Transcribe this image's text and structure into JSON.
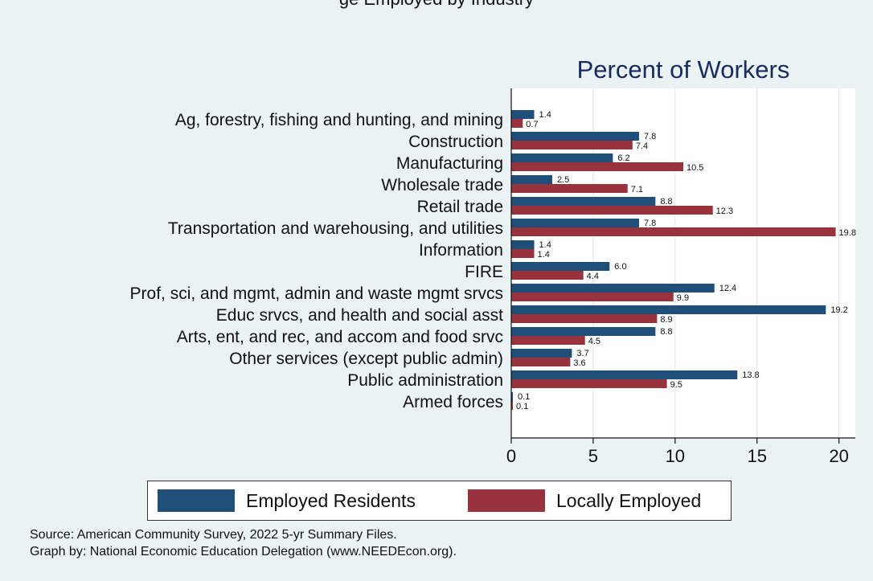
{
  "page": {
    "partial_title": "ge Employed by Industry",
    "source_line": "Source: American Community Survey, 2022 5-yr Summary Files.",
    "graph_by_line": "Graph by: National Economic Education Delegation (www.NEEDEcon.org)."
  },
  "chart_data": {
    "type": "bar",
    "orientation": "horizontal",
    "title": "Percent of Workers",
    "categories": [
      "Ag, forestry, fishing and hunting, and mining",
      "Construction",
      "Manufacturing",
      "Wholesale trade",
      "Retail trade",
      "Transportation and warehousing, and utilities",
      "Information",
      "FIRE",
      "Prof, sci, and mgmt, admin and waste mgmt srvcs",
      "Educ srvcs, and health and social asst",
      "Arts, ent, and rec, and accom and food srvc",
      "Other services (except public admin)",
      "Public administration",
      "Armed forces"
    ],
    "series": [
      {
        "name": "Employed Residents",
        "color": "#1f4e79",
        "values": [
          1.4,
          7.8,
          6.2,
          2.5,
          8.8,
          7.8,
          1.4,
          6.0,
          12.4,
          19.2,
          8.8,
          3.7,
          13.8,
          0.1
        ]
      },
      {
        "name": "Locally Employed",
        "color": "#98323c",
        "values": [
          0.7,
          7.4,
          10.5,
          7.1,
          12.3,
          19.8,
          1.4,
          4.4,
          9.9,
          8.9,
          4.5,
          3.6,
          9.5,
          0.1
        ]
      }
    ],
    "xlim": [
      0,
      21
    ],
    "xticks": [
      0,
      5,
      10,
      15,
      20
    ],
    "grid": true,
    "legend_position": "bottom"
  }
}
